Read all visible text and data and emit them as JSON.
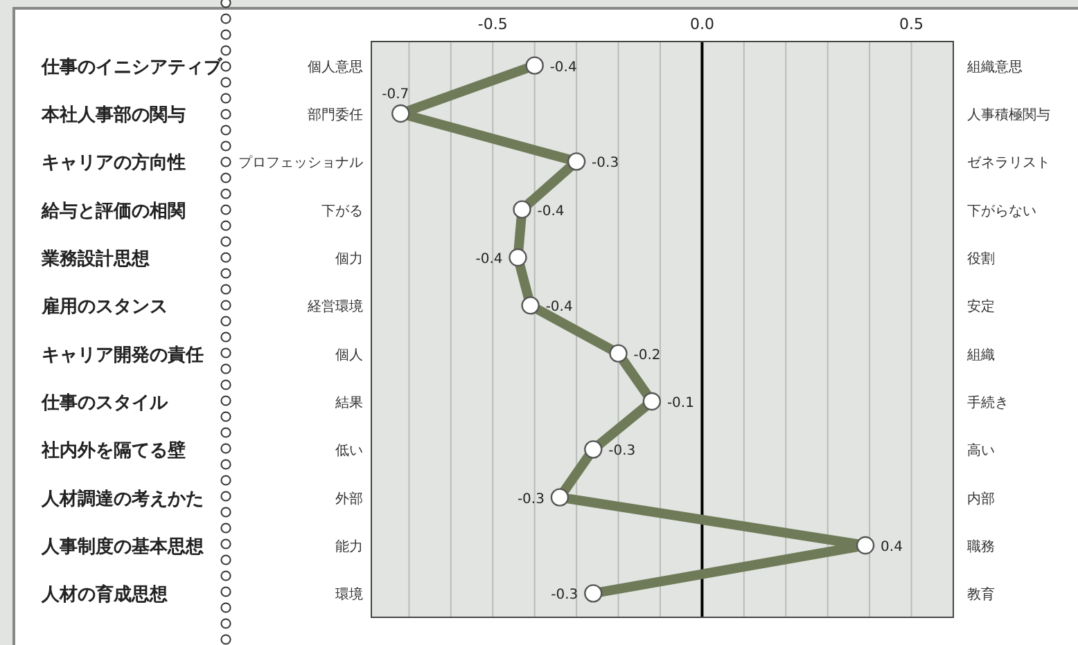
{
  "chart_data": {
    "type": "line",
    "orientation": "horizontal",
    "categories": [
      "仕事のイニシアティブ",
      "本社人事部の関与",
      "キャリアの方向性",
      "給与と評価の相関",
      "業務設計思想",
      "雇用のスタンス",
      "キャリア開発の責任",
      "仕事のスタイル",
      "社内外を隔てる壁",
      "人材調達の考えかた",
      "人事制度の基本思想",
      "人材の育成思想"
    ],
    "series": [
      {
        "color": "#6f7b58",
        "values": [
          -0.4,
          -0.72,
          -0.3,
          -0.43,
          -0.44,
          -0.41,
          -0.2,
          -0.12,
          -0.26,
          -0.34,
          0.39,
          -0.26
        ],
        "value_labels": [
          "-0.4",
          "-0.7",
          "-0.3",
          "-0.4",
          "-0.4",
          "-0.4",
          "-0.2",
          "-0.1",
          "-0.3",
          "-0.3",
          "0.4",
          "-0.3"
        ]
      }
    ],
    "xlim": [
      -0.79,
      0.6
    ],
    "x2lim": [
      -0.79,
      0.6
    ],
    "x2ticks": [
      {
        "value": -0.7,
        "label": null
      },
      {
        "value": -0.6,
        "label": null
      },
      {
        "value": -0.5,
        "label": "-0.5"
      },
      {
        "value": -0.4,
        "label": null
      },
      {
        "value": -0.3,
        "label": null
      },
      {
        "value": -0.2,
        "label": null
      },
      {
        "value": -0.1,
        "label": null
      },
      {
        "value": 0,
        "label": "0.0"
      },
      {
        "value": 0.1,
        "label": null
      },
      {
        "value": 0.2,
        "label": null
      },
      {
        "value": 0.3,
        "label": null
      },
      {
        "value": 0.4,
        "label": null
      },
      {
        "value": 0.5,
        "label": "0.5"
      }
    ],
    "grid": "x",
    "marker": "circle",
    "ref_lines": [
      {
        "axis": "x",
        "value": 0,
        "color": "#000000"
      }
    ],
    "annotations": [
      "個人意思",
      "組織意思",
      "部門委任",
      "人事積極関与",
      "プロフェッショナル",
      "ゼネラリスト",
      "下がる",
      "下がらない",
      "個力",
      "役割",
      "経営環境",
      "安定",
      "個人",
      "組織",
      "結果",
      "手続き",
      "低い",
      "高い",
      "外部",
      "内部",
      "能力",
      "職務",
      "環境",
      "教育"
    ]
  }
}
